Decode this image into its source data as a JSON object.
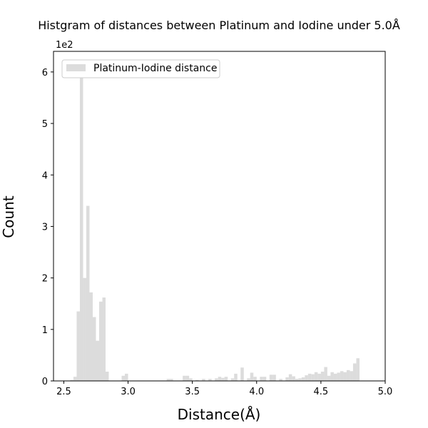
{
  "chart_data": {
    "type": "bar",
    "title": "Histgram of distances between Platinum and Iodine under 5.0Å",
    "xlabel": "Distance(Å)",
    "ylabel": "Count",
    "y_scale_label": "1e2",
    "xlim": [
      2.42,
      5.0
    ],
    "ylim": [
      0,
      6.4
    ],
    "y_unit_multiplier": 100,
    "x_ticks": [
      "2.5",
      "3.0",
      "3.5",
      "4.0",
      "4.5",
      "5.0"
    ],
    "x_tick_values": [
      2.5,
      3.0,
      3.5,
      4.0,
      4.5,
      5.0
    ],
    "y_ticks": [
      "0",
      "1",
      "2",
      "3",
      "4",
      "5",
      "6"
    ],
    "y_tick_values": [
      0,
      1,
      2,
      3,
      4,
      5,
      6
    ],
    "legend_position": "top-left",
    "bar_color": "#dcdcdc",
    "series": [
      {
        "name": "Platinum-Iodine distance",
        "bin_width": 0.025,
        "bins": [
          [
            2.55,
            0.02
          ],
          [
            2.575,
            0.08
          ],
          [
            2.6,
            1.35
          ],
          [
            2.625,
            6.1
          ],
          [
            2.65,
            2.0
          ],
          [
            2.675,
            3.4
          ],
          [
            2.7,
            1.72
          ],
          [
            2.725,
            1.24
          ],
          [
            2.75,
            0.78
          ],
          [
            2.775,
            1.54
          ],
          [
            2.8,
            1.62
          ],
          [
            2.825,
            0.18
          ],
          [
            2.95,
            0.1
          ],
          [
            2.975,
            0.14
          ],
          [
            3.3,
            0.04
          ],
          [
            3.325,
            0.04
          ],
          [
            3.425,
            0.1
          ],
          [
            3.45,
            0.1
          ],
          [
            3.475,
            0.05
          ],
          [
            3.525,
            0.02
          ],
          [
            3.575,
            0.04
          ],
          [
            3.625,
            0.04
          ],
          [
            3.675,
            0.05
          ],
          [
            3.7,
            0.08
          ],
          [
            3.725,
            0.06
          ],
          [
            3.75,
            0.08
          ],
          [
            3.8,
            0.05
          ],
          [
            3.825,
            0.14
          ],
          [
            3.875,
            0.26
          ],
          [
            3.925,
            0.05
          ],
          [
            3.95,
            0.16
          ],
          [
            3.975,
            0.08
          ],
          [
            4.025,
            0.08
          ],
          [
            4.05,
            0.08
          ],
          [
            4.1,
            0.12
          ],
          [
            4.125,
            0.12
          ],
          [
            4.175,
            0.04
          ],
          [
            4.225,
            0.07
          ],
          [
            4.25,
            0.13
          ],
          [
            4.275,
            0.09
          ],
          [
            4.3,
            0.04
          ],
          [
            4.325,
            0.05
          ],
          [
            4.35,
            0.07
          ],
          [
            4.375,
            0.11
          ],
          [
            4.4,
            0.14
          ],
          [
            4.425,
            0.13
          ],
          [
            4.45,
            0.17
          ],
          [
            4.475,
            0.14
          ],
          [
            4.5,
            0.18
          ],
          [
            4.525,
            0.27
          ],
          [
            4.55,
            0.1
          ],
          [
            4.575,
            0.17
          ],
          [
            4.6,
            0.14
          ],
          [
            4.625,
            0.16
          ],
          [
            4.65,
            0.19
          ],
          [
            4.675,
            0.17
          ],
          [
            4.7,
            0.21
          ],
          [
            4.725,
            0.19
          ],
          [
            4.75,
            0.34
          ],
          [
            4.775,
            0.44
          ]
        ]
      }
    ]
  }
}
